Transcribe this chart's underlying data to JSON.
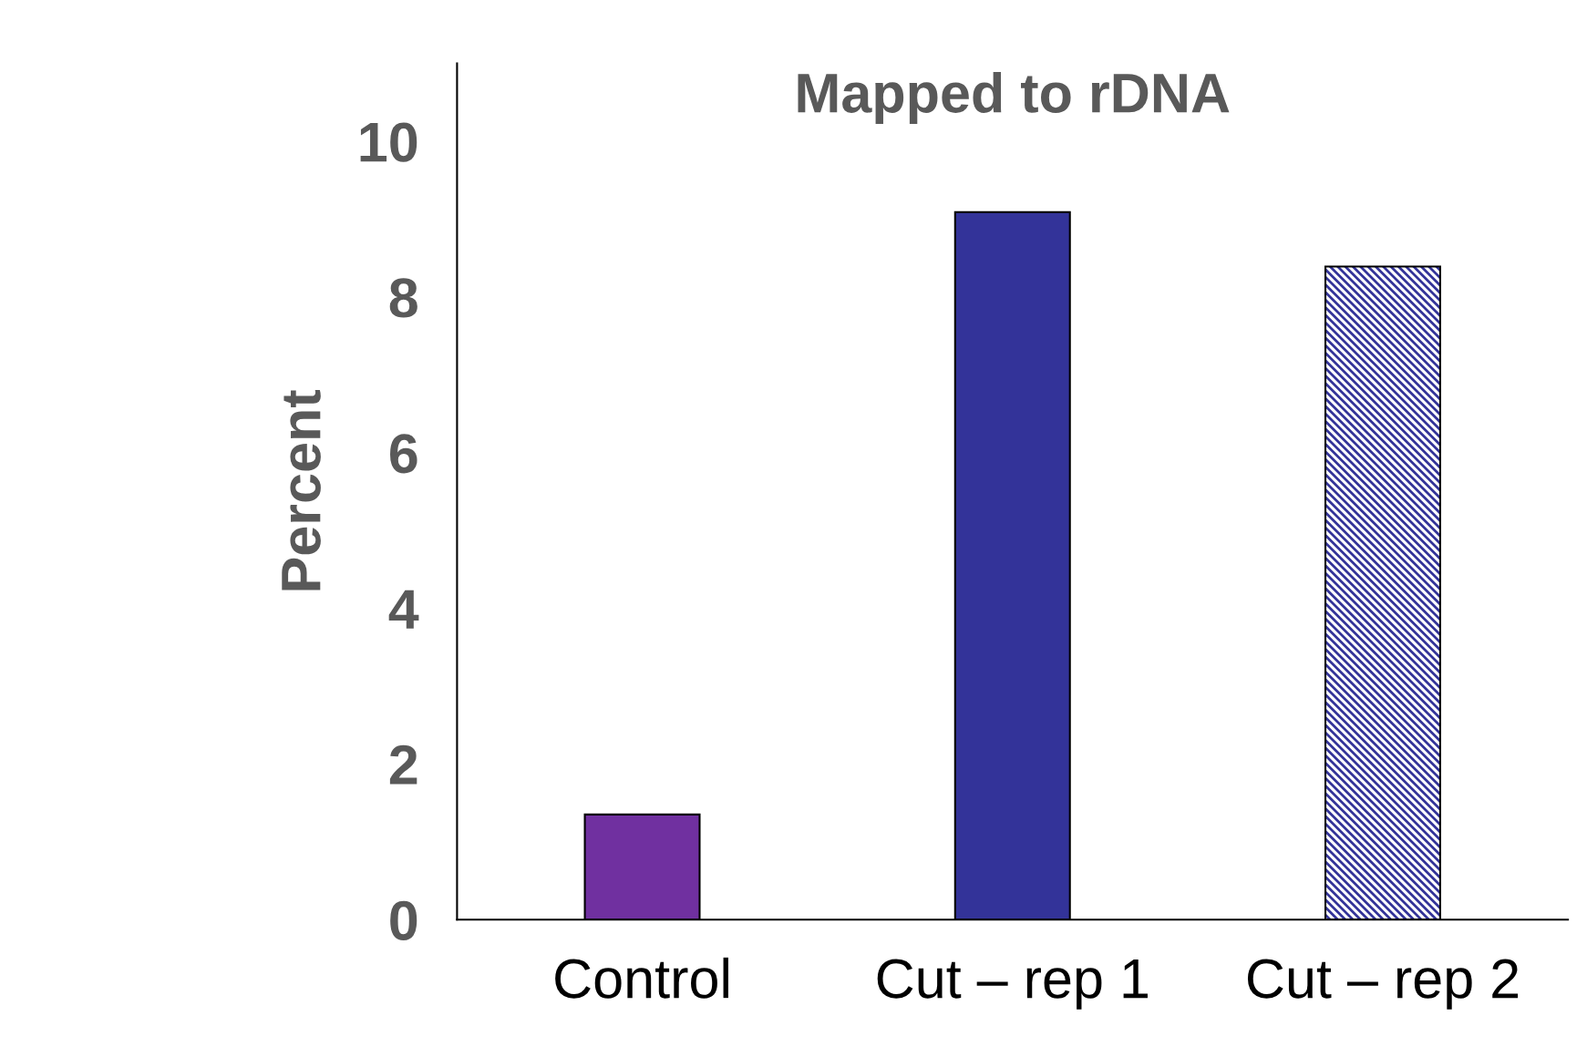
{
  "chart_data": {
    "type": "bar",
    "title": "Mapped to rDNA",
    "ylabel": "Percent",
    "categories": [
      "Control",
      "Cut – rep 1",
      "Cut – rep 2"
    ],
    "values": [
      1.35,
      9.09,
      8.39
    ],
    "colors": [
      "#7030a0",
      "#333399",
      "#333399"
    ],
    "ylim": [
      0,
      11
    ],
    "yticks": [
      0,
      2,
      4,
      6,
      8,
      10
    ],
    "grid": false
  }
}
